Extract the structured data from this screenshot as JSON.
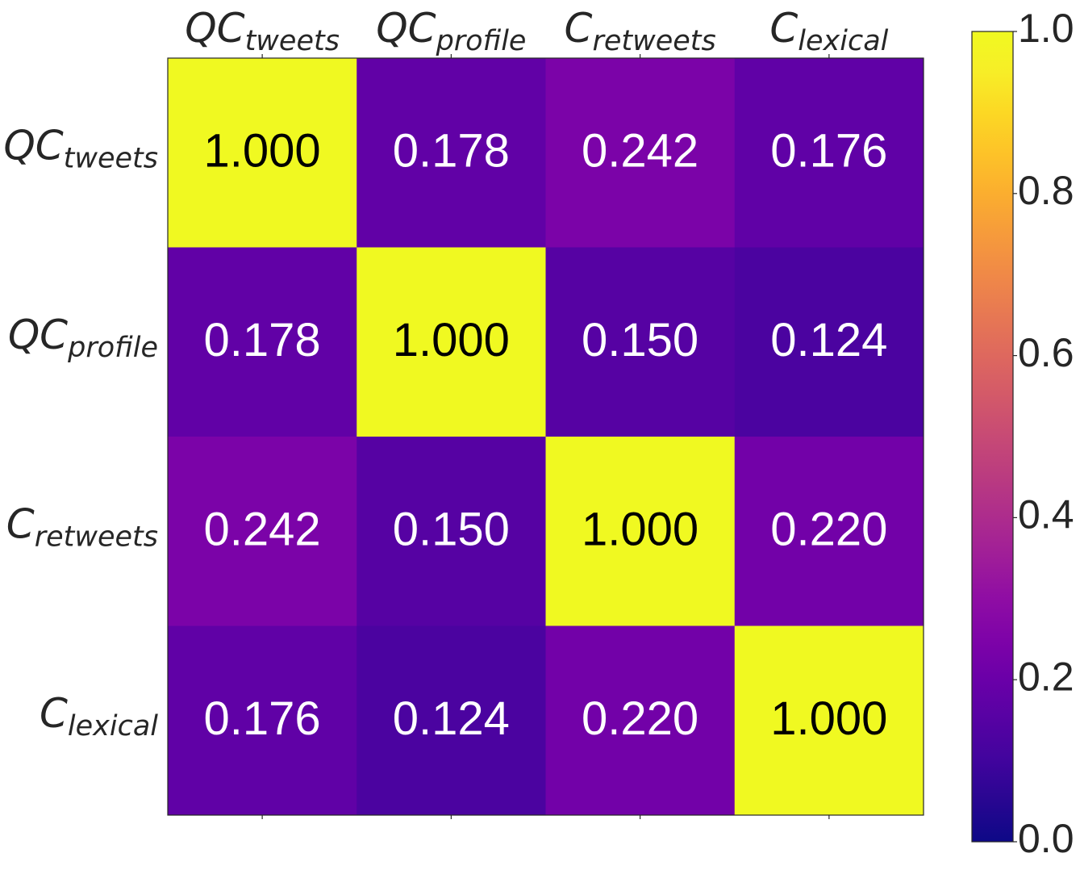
{
  "chart_data": {
    "type": "heatmap",
    "title": "",
    "xlabel": "",
    "ylabel": "",
    "colormap": "plasma",
    "categories": [
      {
        "base": "QC",
        "sub": "tweets"
      },
      {
        "base": "QC",
        "sub": "profile"
      },
      {
        "base": "C",
        "sub": "retweets"
      },
      {
        "base": "C",
        "sub": "lexical"
      }
    ],
    "matrix": [
      [
        1.0,
        0.178,
        0.242,
        0.176
      ],
      [
        0.178,
        1.0,
        0.15,
        0.124
      ],
      [
        0.242,
        0.15,
        1.0,
        0.22
      ],
      [
        0.176,
        0.124,
        0.22,
        1.0
      ]
    ],
    "cell_labels": [
      [
        "1.000",
        "0.178",
        "0.242",
        "0.176"
      ],
      [
        "0.178",
        "1.000",
        "0.150",
        "0.124"
      ],
      [
        "0.242",
        "0.150",
        "1.000",
        "0.220"
      ],
      [
        "0.176",
        "0.124",
        "0.220",
        "1.000"
      ]
    ],
    "colorbar": {
      "range": [
        0.0,
        1.0
      ],
      "ticks": [
        0.0,
        0.2,
        0.4,
        0.6,
        0.8,
        1.0
      ],
      "tick_labels": [
        "0.0",
        "0.2",
        "0.4",
        "0.6",
        "0.8",
        "1.0"
      ]
    },
    "x_axis_position": "top",
    "grid": false,
    "colors": {
      "text_light": "#ffffff",
      "text_dark": "#000000",
      "axis_text": "#262626",
      "frame": "#262626"
    }
  }
}
